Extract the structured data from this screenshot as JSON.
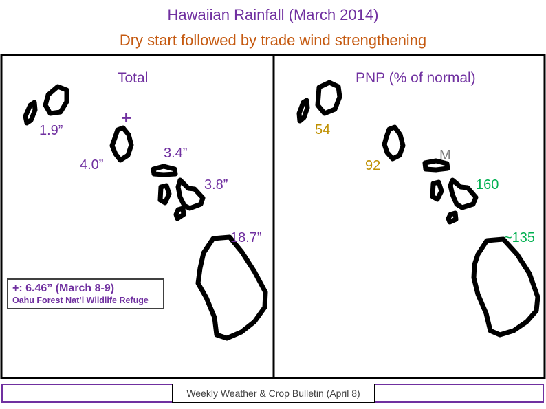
{
  "title": "Hawaiian  Rainfall  (March 2014)",
  "subtitle": "Dry start followed by trade wind strengthening",
  "left_panel": {
    "title": "Total",
    "marker": "+",
    "labels": {
      "kauai": "1.9”",
      "oahu": "4.0”",
      "molokai": "3.4”",
      "maui": "3.8”",
      "big_island": "18.7”"
    },
    "note": {
      "main": "+: 6.46” (March 8-9)",
      "sub": "Oahu Forest Nat’l Wildlife Refuge"
    }
  },
  "right_panel": {
    "title": "PNP (% of normal)",
    "labels": {
      "kauai": "54",
      "oahu": "92",
      "molokai": "M",
      "maui": "160",
      "big_island": "~135"
    }
  },
  "footer": "Weekly Weather & Crop Bulletin (April 8)",
  "colors": {
    "title": "#7030a0",
    "subtitle": "#c55a11",
    "total_labels": "#7030a0",
    "pnp_dry": "#bf9000",
    "pnp_normal": "#bf9000",
    "pnp_wet": "#00b050",
    "pnp_missing": "#7f7f7f"
  }
}
